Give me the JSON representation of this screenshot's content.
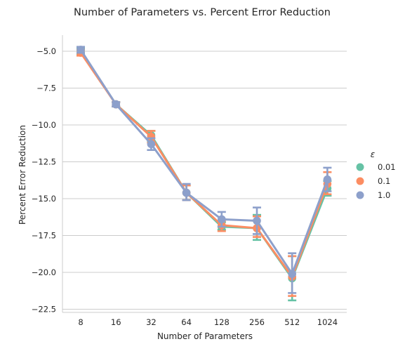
{
  "chart_data": {
    "type": "line",
    "title": "Number of Parameters vs. Percent Error Reduction",
    "xlabel": "Number of Parameters",
    "ylabel": "Percent Error Reduction",
    "categories": [
      "8",
      "16",
      "32",
      "64",
      "128",
      "256",
      "512",
      "1024"
    ],
    "yticks": [
      "−5.0",
      "−7.5",
      "−10.0",
      "−12.5",
      "−15.0",
      "−17.5",
      "−20.0",
      "−22.5"
    ],
    "ytick_values": [
      -5.0,
      -7.5,
      -10.0,
      -12.5,
      -15.0,
      -17.5,
      -20.0,
      -22.5
    ],
    "ylim": [
      -22.7,
      -3.9
    ],
    "grid": true,
    "legend": {
      "title": "ε",
      "placement": "right"
    },
    "series": [
      {
        "name": "0.01",
        "color": "#66c2a5",
        "values": [
          -5.0,
          -8.6,
          -10.7,
          -14.6,
          -16.9,
          -17.0,
          -20.4,
          -14.3
        ],
        "lower": [
          -5.2,
          -8.75,
          -11.1,
          -15.1,
          -17.1,
          -17.8,
          -21.9,
          -14.8
        ],
        "upper": [
          -4.8,
          -8.45,
          -10.4,
          -14.1,
          -16.6,
          -16.1,
          -18.9,
          -13.8
        ]
      },
      {
        "name": "0.1",
        "color": "#fc8d62",
        "values": [
          -5.1,
          -8.6,
          -10.8,
          -14.6,
          -16.8,
          -17.0,
          -20.3,
          -14.0
        ],
        "lower": [
          -5.3,
          -8.75,
          -11.2,
          -15.1,
          -17.2,
          -17.6,
          -21.6,
          -14.7
        ],
        "upper": [
          -4.9,
          -8.45,
          -10.4,
          -14.1,
          -16.5,
          -16.2,
          -18.9,
          -13.2
        ]
      },
      {
        "name": "1.0",
        "color": "#8da0cb",
        "values": [
          -4.9,
          -8.6,
          -11.3,
          -14.6,
          -16.4,
          -16.5,
          -20.1,
          -13.7
        ],
        "lower": [
          -5.1,
          -8.75,
          -11.7,
          -15.1,
          -16.9,
          -17.4,
          -21.4,
          -14.5
        ],
        "upper": [
          -4.7,
          -8.45,
          -10.9,
          -14.0,
          -15.9,
          -15.6,
          -18.7,
          -12.9
        ]
      }
    ]
  }
}
